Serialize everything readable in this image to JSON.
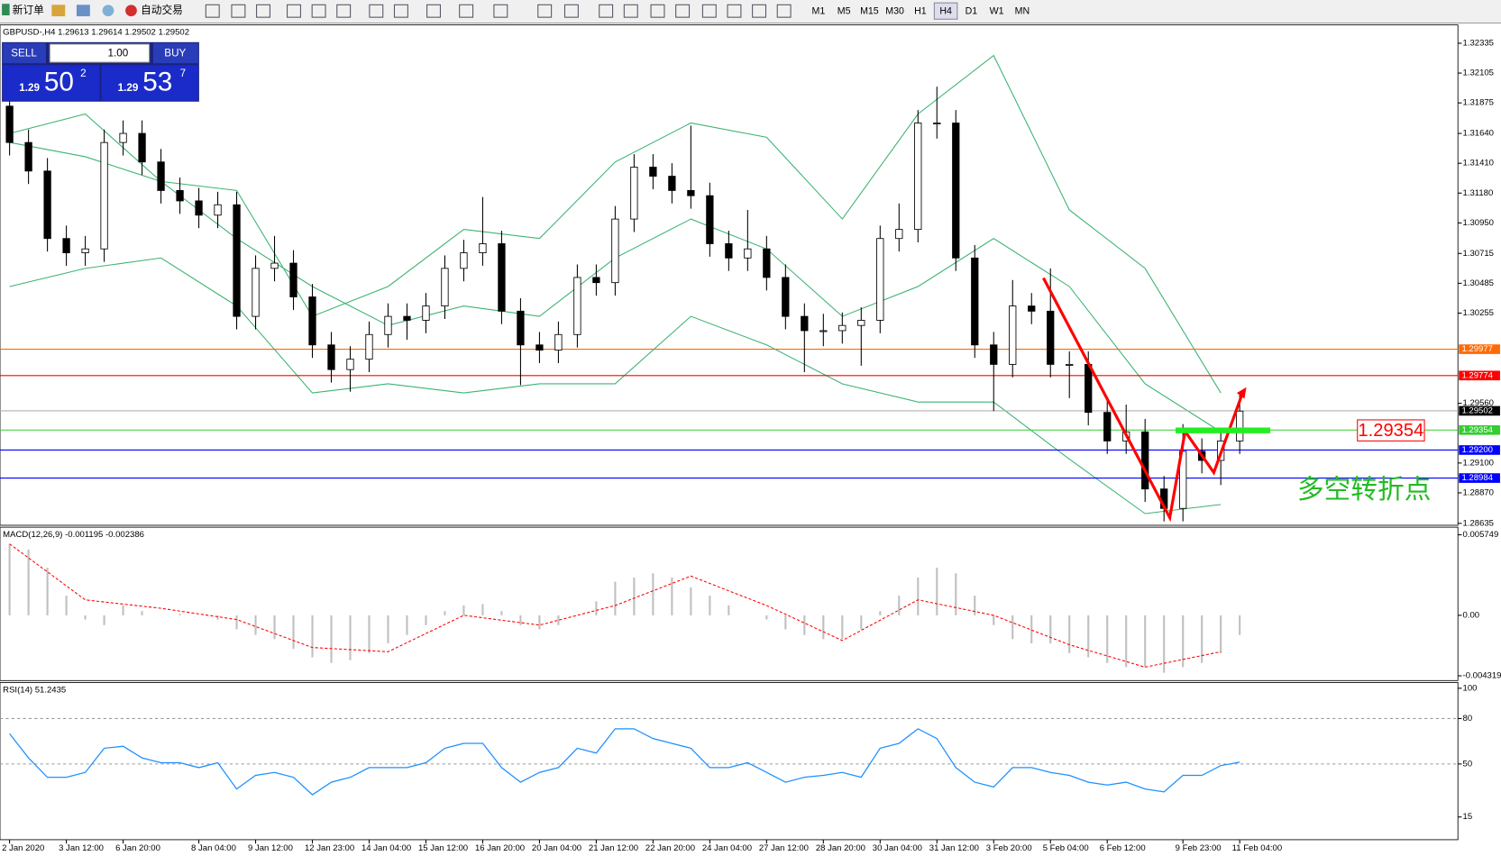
{
  "toolbar": {
    "new_order": "新订单",
    "auto_trading": "自动交易",
    "timeframes": [
      "M1",
      "M5",
      "M15",
      "M30",
      "H1",
      "H4",
      "D1",
      "W1",
      "MN"
    ],
    "active": "H4"
  },
  "trade_panel": {
    "sell": "SELL",
    "buy": "BUY",
    "lot": "1.00",
    "bid_big": "1.29",
    "bid_pips": "50",
    "bid_frac": "2",
    "ask_big": "1.29",
    "ask_pips": "53",
    "ask_frac": "7"
  },
  "chart_data": [
    {
      "type": "candlestick",
      "title": "GBPUSD-,H4  1.29613 1.29614 1.29502 1.29502",
      "categories": [
        "2 Jan 2020",
        null,
        null,
        "3 Jan 12:00",
        null,
        null,
        "6 Jan 20:00",
        null,
        null,
        null,
        "8 Jan 04:00",
        null,
        null,
        "9 Jan 12:00",
        null,
        null,
        "12 Jan 23:00",
        null,
        null,
        "14 Jan 04:00",
        null,
        null,
        "15 Jan 12:00",
        null,
        null,
        "16 Jan 20:00",
        null,
        null,
        "20 Jan 04:00",
        null,
        null,
        "21 Jan 12:00",
        null,
        null,
        "22 Jan 20:00",
        null,
        null,
        "24 Jan 04:00",
        null,
        null,
        "27 Jan 12:00",
        null,
        null,
        "28 Jan 20:00",
        null,
        null,
        "30 Jan 04:00",
        null,
        null,
        "31 Jan 12:00",
        null,
        null,
        "3 Feb 20:00",
        null,
        null,
        "5 Feb 04:00",
        null,
        null,
        "6 Feb 12:00",
        null,
        null,
        null,
        "9 Feb 23:00",
        null,
        null,
        "11 Feb 04:00"
      ],
      "open": [
        1.3185,
        1.3157,
        1.3135,
        1.3083,
        1.3072,
        1.3075,
        1.3157,
        1.3164,
        1.3142,
        1.312,
        1.3112,
        1.3101,
        1.3109,
        1.3023,
        1.306,
        1.3064,
        1.3038,
        1.3001,
        1.2982,
        1.299,
        1.3009,
        1.3023,
        1.302,
        1.3031,
        1.306,
        1.3072,
        1.3079,
        1.3027,
        1.3001,
        1.2997,
        1.3009,
        1.3053,
        1.3049,
        1.3098,
        1.3138,
        1.3131,
        1.312,
        1.3116,
        1.3079,
        1.3068,
        1.3075,
        1.3053,
        1.3023,
        1.3012,
        1.3012,
        1.3016,
        1.302,
        1.3083,
        1.309,
        1.3172,
        1.3172,
        1.3068,
        1.3001,
        1.2986,
        1.3031,
        1.3027,
        1.2986,
        1.2986,
        1.2949,
        1.2927,
        1.2934,
        1.289,
        1.2875,
        1.2919,
        1.2912,
        1.2927
      ],
      "high": [
        1.3195,
        1.3167,
        1.3145,
        1.3093,
        1.3085,
        1.3167,
        1.3174,
        1.3174,
        1.3152,
        1.313,
        1.3122,
        1.3119,
        1.3119,
        1.307,
        1.3085,
        1.3074,
        1.3048,
        1.3011,
        1.3,
        1.3019,
        1.3033,
        1.3033,
        1.3041,
        1.307,
        1.3082,
        1.3115,
        1.3089,
        1.3037,
        1.3011,
        1.3019,
        1.3063,
        1.3063,
        1.3108,
        1.3148,
        1.3148,
        1.3141,
        1.317,
        1.3126,
        1.3089,
        1.3105,
        1.3085,
        1.3063,
        1.3033,
        1.3025,
        1.3026,
        1.303,
        1.3093,
        1.311,
        1.3182,
        1.32,
        1.3182,
        1.3078,
        1.3011,
        1.3051,
        1.3041,
        1.306,
        1.2996,
        1.2996,
        1.2959,
        1.2955,
        1.2944,
        1.29,
        1.294,
        1.2929,
        1.2937,
        1.2963
      ],
      "low": [
        1.3147,
        1.3125,
        1.3073,
        1.3062,
        1.3062,
        1.3065,
        1.3147,
        1.3132,
        1.311,
        1.3102,
        1.3091,
        1.3091,
        1.3013,
        1.3013,
        1.305,
        1.3028,
        1.2991,
        1.2972,
        1.2965,
        1.298,
        1.2999,
        1.3005,
        1.301,
        1.3021,
        1.305,
        1.3062,
        1.3017,
        1.297,
        1.2987,
        1.2987,
        1.2999,
        1.3039,
        1.3039,
        1.3088,
        1.3121,
        1.311,
        1.3106,
        1.3069,
        1.3058,
        1.3058,
        1.3043,
        1.3013,
        1.298,
        1.3,
        1.3002,
        1.2985,
        1.301,
        1.3073,
        1.308,
        1.316,
        1.3058,
        1.2991,
        1.295,
        1.2976,
        1.3017,
        1.2976,
        1.296,
        1.2939,
        1.2917,
        1.2917,
        1.288,
        1.2865,
        1.2865,
        1.2902,
        1.2893,
        1.2917
      ],
      "close": [
        1.3157,
        1.3135,
        1.3083,
        1.3072,
        1.3075,
        1.3157,
        1.3164,
        1.3142,
        1.312,
        1.3112,
        1.3101,
        1.3109,
        1.3023,
        1.306,
        1.3064,
        1.3038,
        1.3001,
        1.2982,
        1.299,
        1.3009,
        1.3023,
        1.302,
        1.3031,
        1.306,
        1.3072,
        1.3079,
        1.3027,
        1.3001,
        1.2997,
        1.3009,
        1.3053,
        1.3049,
        1.3098,
        1.3138,
        1.3131,
        1.312,
        1.3116,
        1.3079,
        1.3068,
        1.3075,
        1.3053,
        1.3023,
        1.3012,
        1.3012,
        1.3016,
        1.302,
        1.3083,
        1.309,
        1.3172,
        1.3172,
        1.3068,
        1.3001,
        1.2986,
        1.3031,
        1.3027,
        1.2986,
        1.2986,
        1.2949,
        1.2927,
        1.2934,
        1.289,
        1.2875,
        1.2919,
        1.2912,
        1.2927,
        1.295
      ],
      "up_color": "#ffffff",
      "down_color": "#000000",
      "bands": {
        "color": "#3cb371",
        "x": [
          0,
          4,
          8,
          12,
          16,
          20,
          24,
          28,
          32,
          36,
          40,
          44,
          48,
          52,
          56,
          60,
          64
        ],
        "upper": [
          1.3164,
          1.3179,
          1.3127,
          1.312,
          1.3023,
          1.3046,
          1.309,
          1.3083,
          1.3142,
          1.3172,
          1.3161,
          1.3098,
          1.3179,
          1.3224,
          1.3105,
          1.306,
          1.2964
        ],
        "middle": [
          1.3157,
          1.3146,
          1.3127,
          1.3083,
          1.3046,
          1.3016,
          1.3031,
          1.3023,
          1.3068,
          1.3098,
          1.3075,
          1.3023,
          1.3046,
          1.3083,
          1.3046,
          1.2971,
          1.2934
        ],
        "lower": [
          1.3046,
          1.306,
          1.3068,
          1.3031,
          1.2964,
          1.2971,
          1.2964,
          1.2971,
          1.2971,
          1.3023,
          1.3001,
          1.2971,
          1.2957,
          1.2957,
          1.2913,
          1.2871,
          1.2878
        ]
      },
      "levels": [
        {
          "value": 1.29977,
          "color": "#ff6a00"
        },
        {
          "value": 1.29774,
          "color": "#ff0000"
        },
        {
          "value": 1.29502,
          "color": "#000000"
        },
        {
          "value": 1.29354,
          "color": "#33cc33"
        },
        {
          "value": 1.292,
          "label": "1.29200",
          "color": "#0000ff"
        },
        {
          "value": 1.28984,
          "color": "#0000ff"
        }
      ],
      "annotation": "多空转折点",
      "ylim": [
        1.2862,
        1.32476
      ],
      "yticks": [
        1.32335,
        1.32105,
        1.31875,
        {
          "value": 1.3164,
          "label": "1.31640"
        },
        {
          "value": 1.3141,
          "label": "1.31410"
        },
        {
          "value": 1.3118,
          "label": "1.31180"
        },
        {
          "value": 1.3095,
          "label": "1.30950"
        },
        1.30715,
        1.30485,
        1.30255,
        {
          "value": 1.2956,
          "label": "1.29560"
        },
        {
          "value": 1.291,
          "label": "1.29100"
        },
        {
          "value": 1.2887,
          "label": "1.28870"
        },
        1.28635
      ]
    },
    {
      "type": "macd",
      "title": "MACD(12,26,9) -0.001195 -0.002386",
      "color": "#c0c0c0",
      "values": [
        0.0051,
        0.0047,
        0.0034,
        0.0014,
        -0.0003,
        -0.0007,
        0.0007,
        0.0003,
        0,
        0.0001,
        0,
        -0.0003,
        -0.001,
        -0.0014,
        -0.0017,
        -0.0024,
        -0.003,
        -0.0034,
        -0.0032,
        -0.0027,
        -0.002,
        -0.0014,
        -0.0007,
        0.0003,
        0.0007,
        0.0008,
        0.0003,
        -0.0007,
        -0.001,
        -0.0007,
        0,
        0.001,
        0.0024,
        0.0027,
        0.003,
        0.0027,
        0.002,
        0.0014,
        0.0007,
        0,
        -0.0003,
        -0.001,
        -0.0014,
        -0.0017,
        -0.0017,
        -0.001,
        0.0003,
        0.0014,
        0.0027,
        0.0034,
        0.003,
        0.0014,
        -0.0007,
        -0.0017,
        -0.002,
        -0.002,
        -0.0027,
        -0.003,
        -0.0034,
        -0.0037,
        -0.0037,
        -0.0041,
        -0.0037,
        -0.0034,
        -0.0027,
        -0.0014
      ],
      "signal": {
        "color": "#ff0000",
        "x": [
          0,
          4,
          8,
          12,
          16,
          20,
          24,
          28,
          32,
          36,
          40,
          44,
          48,
          52,
          56,
          60,
          64
        ],
        "values": [
          0.0051,
          0.0011,
          0.0005,
          -0.0003,
          -0.0023,
          -0.0026,
          0,
          -0.0007,
          0.0007,
          0.0028,
          0.0007,
          -0.0018,
          0.0011,
          0,
          -0.0021,
          -0.0037,
          -0.0026
        ]
      },
      "ylim": [
        -0.00466,
        0.00629
      ],
      "yticks": [
        0.005749,
        {
          "value": 0,
          "label": "0.00"
        },
        -0.004319
      ]
    },
    {
      "type": "line",
      "title": "RSI(14) 51.2435",
      "color": "#1e90ff",
      "values": [
        70.0,
        54.0,
        41.2,
        41.2,
        44.4,
        60.4,
        61.7,
        54.0,
        50.8,
        50.8,
        47.6,
        50.8,
        33.5,
        42.5,
        44.4,
        41.2,
        29.7,
        38.0,
        41.2,
        47.6,
        47.6,
        47.6,
        50.8,
        60.4,
        63.6,
        63.6,
        47.6,
        38.0,
        44.4,
        47.6,
        60.4,
        57.2,
        73.2,
        73.2,
        66.8,
        63.6,
        60.4,
        47.6,
        47.6,
        50.8,
        44.4,
        38.0,
        41.2,
        42.5,
        44.4,
        41.2,
        60.4,
        63.6,
        73.2,
        66.8,
        47.6,
        38.0,
        34.8,
        47.6,
        47.6,
        44.4,
        42.5,
        38.0,
        36.1,
        38.0,
        33.5,
        31.6,
        42.5,
        42.5,
        48.9,
        51.2
      ],
      "grid_levels": [
        80,
        50
      ],
      "ylim": [
        0,
        103.8
      ],
      "yticks": [
        100,
        80,
        50,
        15
      ]
    }
  ]
}
